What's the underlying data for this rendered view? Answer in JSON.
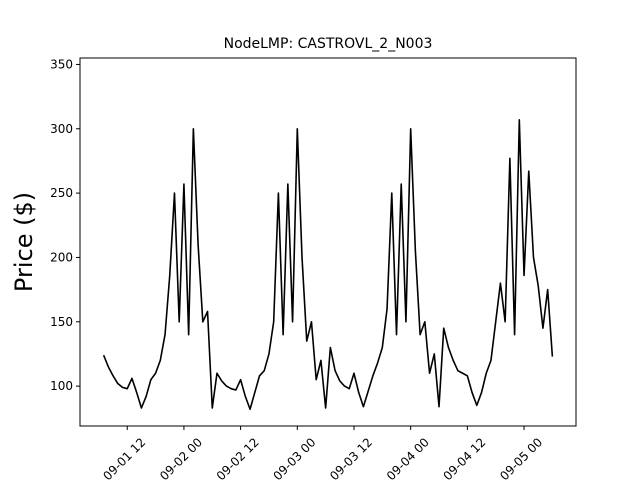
{
  "chart_data": {
    "type": "line",
    "title": "NodeLMP: CASTROVL_2_N003",
    "y_label": "Price ($)",
    "x": [
      "09-01 07",
      "09-01 08",
      "09-01 09",
      "09-01 10",
      "09-01 11",
      "09-01 12",
      "09-01 13",
      "09-01 14",
      "09-01 15",
      "09-01 16",
      "09-01 17",
      "09-01 18",
      "09-01 19",
      "09-01 20",
      "09-01 21",
      "09-01 22",
      "09-01 23",
      "09-02 00",
      "09-02 01",
      "09-02 02",
      "09-02 03",
      "09-02 04",
      "09-02 05",
      "09-02 06",
      "09-02 07",
      "09-02 08",
      "09-02 09",
      "09-02 10",
      "09-02 11",
      "09-02 12",
      "09-02 13",
      "09-02 14",
      "09-02 15",
      "09-02 16",
      "09-02 17",
      "09-02 18",
      "09-02 19",
      "09-02 20",
      "09-02 21",
      "09-02 22",
      "09-02 23",
      "09-03 00",
      "09-03 01",
      "09-03 02",
      "09-03 03",
      "09-03 04",
      "09-03 05",
      "09-03 06",
      "09-03 07",
      "09-03 08",
      "09-03 09",
      "09-03 10",
      "09-03 11",
      "09-03 12",
      "09-03 13",
      "09-03 14",
      "09-03 15",
      "09-03 16",
      "09-03 17",
      "09-03 18",
      "09-03 19",
      "09-03 20",
      "09-03 21",
      "09-03 22",
      "09-03 23",
      "09-04 00",
      "09-04 01",
      "09-04 02",
      "09-04 03",
      "09-04 04",
      "09-04 05",
      "09-04 06",
      "09-04 07",
      "09-04 08",
      "09-04 09",
      "09-04 10",
      "09-04 11",
      "09-04 12",
      "09-04 13",
      "09-04 14",
      "09-04 15",
      "09-04 16",
      "09-04 17",
      "09-04 18",
      "09-04 19",
      "09-04 20",
      "09-04 21",
      "09-04 22",
      "09-04 23",
      "09-05 00",
      "09-05 01",
      "09-05 02",
      "09-05 03",
      "09-05 04",
      "09-05 05",
      "09-05 06"
    ],
    "series": [
      {
        "color": "#000000",
        "values": [
          124,
          115,
          108,
          102,
          99,
          98,
          106,
          95,
          83,
          92,
          105,
          110,
          120,
          140,
          186,
          250,
          150,
          257,
          140,
          300,
          210,
          150,
          158,
          83,
          110,
          104,
          100,
          98,
          97,
          105,
          92,
          82,
          95,
          108,
          112,
          125,
          150,
          250,
          140,
          257,
          150,
          300,
          200,
          135,
          150,
          105,
          120,
          83,
          130,
          112,
          104,
          100,
          98,
          110,
          95,
          84,
          96,
          108,
          118,
          130,
          160,
          250,
          140,
          257,
          150,
          300,
          205,
          140,
          150,
          110,
          125,
          84,
          145,
          130,
          120,
          112,
          110,
          108,
          95,
          85,
          95,
          110,
          120,
          150,
          180,
          150,
          277,
          140,
          307,
          186,
          267,
          200,
          178,
          145,
          175,
          123
        ]
      }
    ],
    "xlim": [
      "09-01 02",
      "09-05 11"
    ],
    "xticks": [
      "09-01 12",
      "09-02 00",
      "09-02 12",
      "09-03 00",
      "09-03 12",
      "09-04 00",
      "09-04 12",
      "09-05 00"
    ],
    "ylim": [
      69,
      355
    ],
    "yticks": [
      100,
      150,
      200,
      250,
      300,
      350
    ],
    "grid": false
  }
}
